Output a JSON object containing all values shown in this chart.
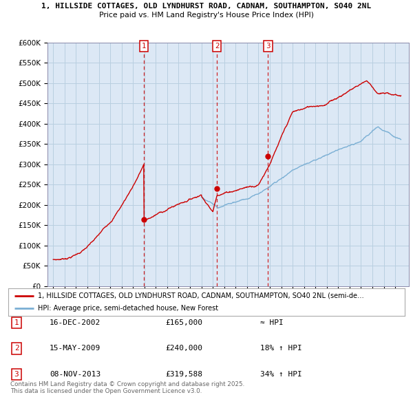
{
  "title_line1": "1, HILLSIDE COTTAGES, OLD LYNDHURST ROAD, CADNAM, SOUTHAMPTON, SO40 2NL",
  "title_line2": "Price paid vs. HM Land Registry's House Price Index (HPI)",
  "background_color": "#ffffff",
  "plot_bg_color": "#dce8f5",
  "grid_color": "#b8cfe0",
  "sale_color": "#cc0000",
  "hpi_color": "#7aafd4",
  "sale_dates": [
    2002.96,
    2009.37,
    2013.85
  ],
  "sale_prices": [
    165000,
    240000,
    319588
  ],
  "sale_labels": [
    "1",
    "2",
    "3"
  ],
  "ylim": [
    0,
    600000
  ],
  "yticks": [
    0,
    50000,
    100000,
    150000,
    200000,
    250000,
    300000,
    350000,
    400000,
    450000,
    500000,
    550000,
    600000
  ],
  "xlim_start": 1994.5,
  "xlim_end": 2026.2,
  "legend_sale_label": "1, HILLSIDE COTTAGES, OLD LYNDHURST ROAD, CADNAM, SOUTHAMPTON, SO40 2NL (semi-de…",
  "legend_hpi_label": "HPI: Average price, semi-detached house, New Forest",
  "table_entries": [
    {
      "num": "1",
      "date": "16-DEC-2002",
      "price": "£165,000",
      "hpi": "≈ HPI"
    },
    {
      "num": "2",
      "date": "15-MAY-2009",
      "price": "£240,000",
      "hpi": "18% ↑ HPI"
    },
    {
      "num": "3",
      "date": "08-NOV-2013",
      "price": "£319,588",
      "hpi": "34% ↑ HPI"
    }
  ],
  "footer_text": "Contains HM Land Registry data © Crown copyright and database right 2025.\nThis data is licensed under the Open Government Licence v3.0."
}
